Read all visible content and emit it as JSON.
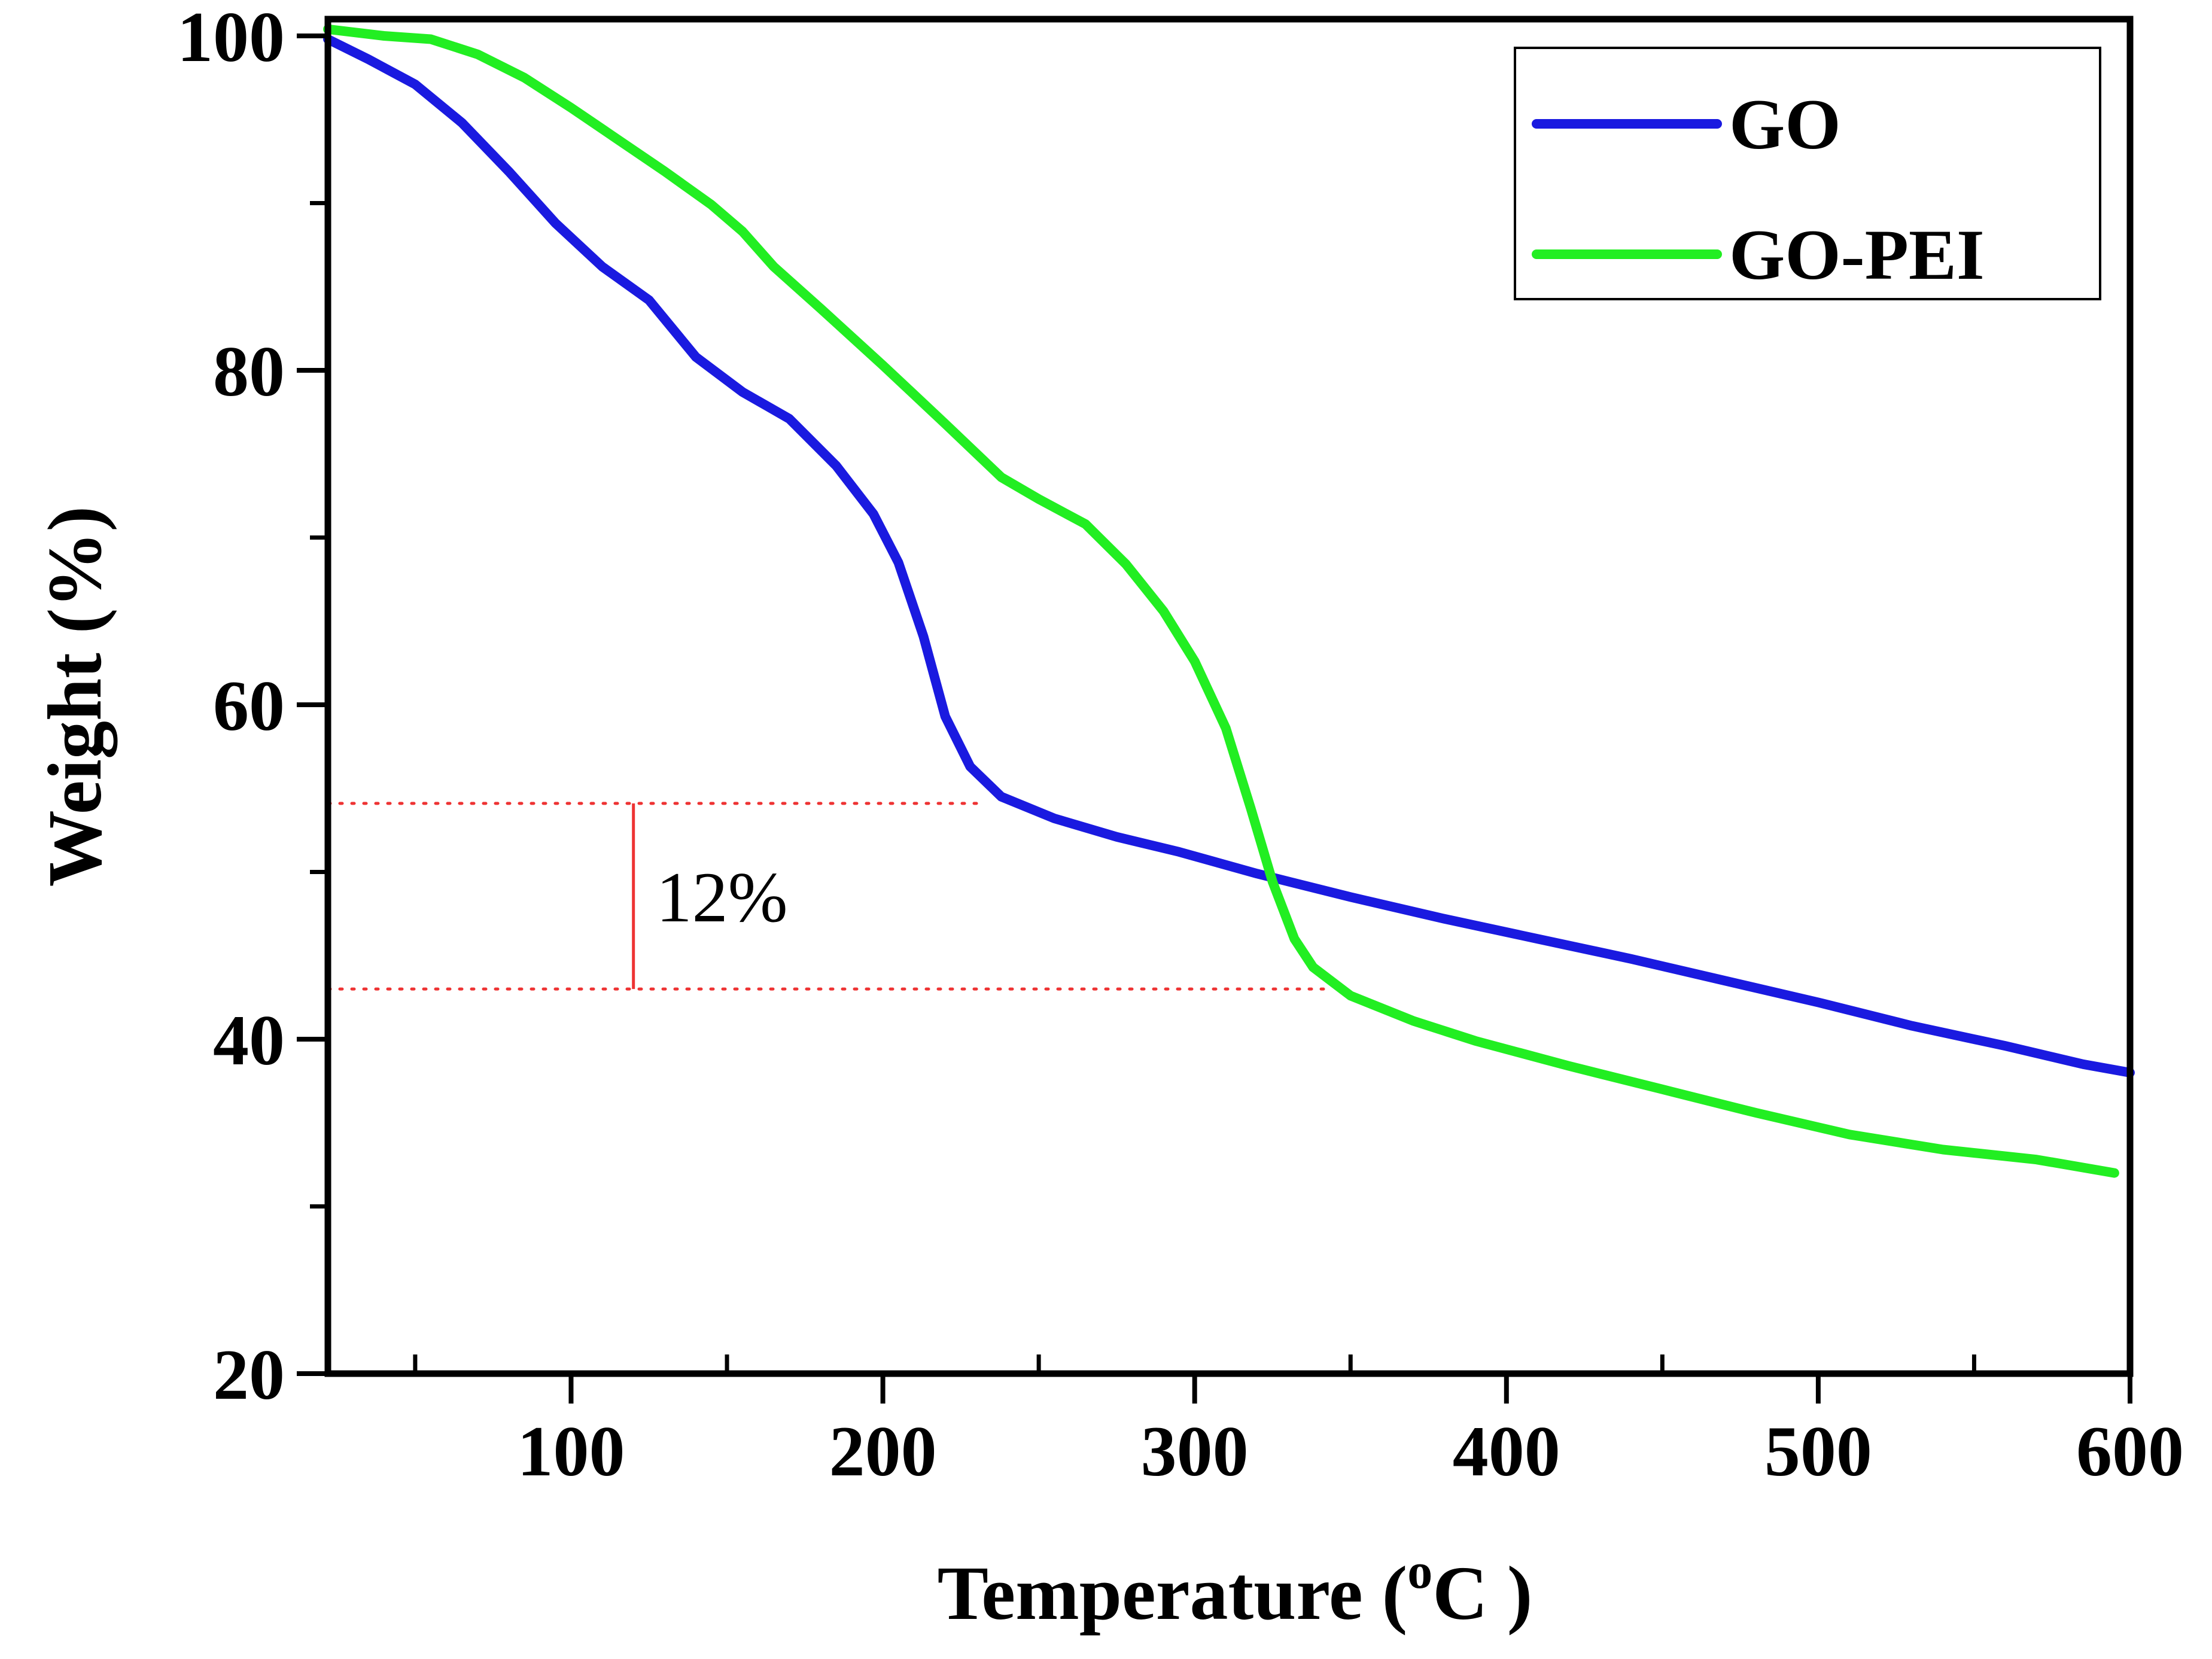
{
  "chart_data": {
    "type": "line",
    "title": "",
    "xlabel": "Temperature (",
    "xlabel_superscript": "o",
    "xlabel_unit": "C )",
    "ylabel": "Weight (%)",
    "xlim": [
      22,
      600
    ],
    "ylim": [
      20,
      101
    ],
    "x_ticks": [
      100,
      200,
      300,
      400,
      500,
      600
    ],
    "y_ticks": [
      20,
      40,
      60,
      80,
      100
    ],
    "grid": false,
    "legend_position": "top-right",
    "series": [
      {
        "name": "GO",
        "color": "#1a1ae0",
        "points": [
          [
            22,
            99.8
          ],
          [
            35,
            98.6
          ],
          [
            50,
            97.1
          ],
          [
            65,
            94.8
          ],
          [
            80,
            91.9
          ],
          [
            95,
            88.8
          ],
          [
            110,
            86.2
          ],
          [
            125,
            84.2
          ],
          [
            140,
            80.8
          ],
          [
            155,
            78.7
          ],
          [
            170,
            77.1
          ],
          [
            185,
            74.3
          ],
          [
            197,
            71.4
          ],
          [
            205,
            68.5
          ],
          [
            213,
            64.1
          ],
          [
            220,
            59.3
          ],
          [
            228,
            56.3
          ],
          [
            238,
            54.5
          ],
          [
            255,
            53.2
          ],
          [
            275,
            52.1
          ],
          [
            295,
            51.2
          ],
          [
            320,
            49.9
          ],
          [
            350,
            48.5
          ],
          [
            380,
            47.2
          ],
          [
            410,
            46.0
          ],
          [
            440,
            44.8
          ],
          [
            470,
            43.5
          ],
          [
            500,
            42.2
          ],
          [
            530,
            40.8
          ],
          [
            560,
            39.6
          ],
          [
            585,
            38.5
          ],
          [
            600,
            38.0
          ]
        ]
      },
      {
        "name": "GO-PEI",
        "color": "#22ee22",
        "points": [
          [
            22,
            100.4
          ],
          [
            40,
            100.0
          ],
          [
            55,
            99.8
          ],
          [
            70,
            98.9
          ],
          [
            85,
            97.5
          ],
          [
            100,
            95.7
          ],
          [
            115,
            93.8
          ],
          [
            130,
            91.9
          ],
          [
            145,
            89.9
          ],
          [
            155,
            88.3
          ],
          [
            165,
            86.2
          ],
          [
            180,
            83.7
          ],
          [
            200,
            80.3
          ],
          [
            220,
            76.8
          ],
          [
            238,
            73.6
          ],
          [
            250,
            72.3
          ],
          [
            265,
            70.8
          ],
          [
            278,
            68.4
          ],
          [
            290,
            65.6
          ],
          [
            300,
            62.6
          ],
          [
            310,
            58.6
          ],
          [
            318,
            53.8
          ],
          [
            325,
            49.4
          ],
          [
            332,
            46.0
          ],
          [
            338,
            44.3
          ],
          [
            350,
            42.6
          ],
          [
            370,
            41.1
          ],
          [
            390,
            39.9
          ],
          [
            420,
            38.4
          ],
          [
            450,
            37.0
          ],
          [
            480,
            35.6
          ],
          [
            510,
            34.3
          ],
          [
            540,
            33.4
          ],
          [
            570,
            32.8
          ],
          [
            595,
            32.0
          ]
        ]
      }
    ],
    "annotation": {
      "label": "12%",
      "upper_y": 54.1,
      "lower_y": 43.0,
      "x": 120,
      "line_color": "#ee3333"
    }
  }
}
